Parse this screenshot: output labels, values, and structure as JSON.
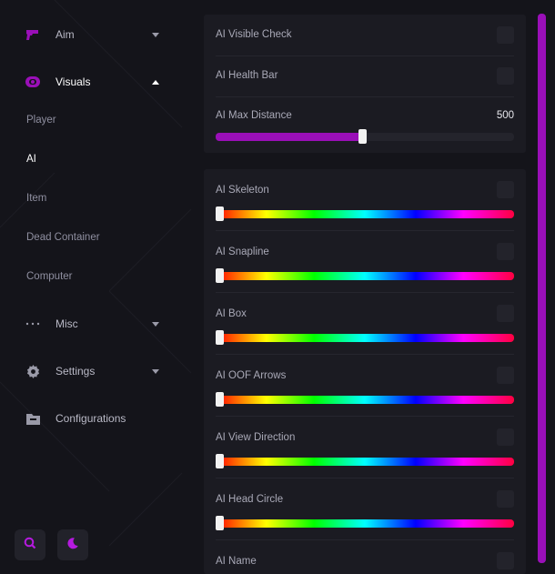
{
  "colors": {
    "accent": "#9a0fb8",
    "background": "#14141a",
    "panel": "#1b1b22"
  },
  "sidebar": {
    "items": [
      {
        "label": "Aim",
        "icon": "gun-icon"
      },
      {
        "label": "Visuals",
        "icon": "eye-icon"
      },
      {
        "label": "Misc",
        "icon": "dots-icon"
      },
      {
        "label": "Settings",
        "icon": "gear-icon"
      },
      {
        "label": "Configurations",
        "icon": "folder-icon"
      }
    ],
    "sub_items": [
      "Player",
      "AI",
      "Item",
      "Dead Container",
      "Computer"
    ],
    "bottom_buttons": [
      "search-icon",
      "moon-icon"
    ]
  },
  "panel1": {
    "rows": [
      {
        "label": "AI Visible Check"
      },
      {
        "label": "AI Health Bar"
      },
      {
        "label": "AI Max Distance",
        "value": "500",
        "fraction": 0.49
      }
    ]
  },
  "panel2": {
    "rows": [
      {
        "label": "AI Skeleton"
      },
      {
        "label": "AI Snapline"
      },
      {
        "label": "AI Box"
      },
      {
        "label": "AI OOF Arrows"
      },
      {
        "label": "AI View Direction"
      },
      {
        "label": "AI Head Circle"
      },
      {
        "label": "AI Name"
      }
    ]
  }
}
